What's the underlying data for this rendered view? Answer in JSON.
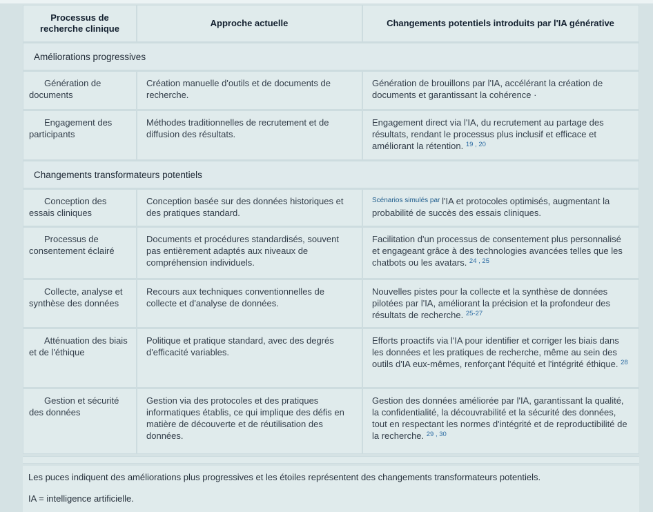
{
  "table": {
    "headers": [
      "Processus de recherche clinique",
      "Approche actuelle",
      "Changements potentiels introduits par l'IA générative"
    ],
    "rows": [
      {
        "type": "section",
        "label": "Améliorations progressives"
      },
      {
        "type": "data",
        "process": "Génération de documents",
        "current": "Création manuelle d'outils et de documents de recherche.",
        "change": [
          {
            "k": "txt",
            "t": "Génération de brouillons par l'IA, accélérant la création de documents et garantissant la cohérence ·"
          }
        ]
      },
      {
        "type": "data",
        "process": "Engagement des participants",
        "current": "Méthodes traditionnelles de recrutement et de diffusion des résultats.",
        "change": [
          {
            "k": "txt",
            "t": "Engagement direct via l'IA, du recrutement au partage des résultats, rendant le processus plus inclusif et efficace et améliorant la rétention. "
          },
          {
            "k": "sup",
            "t": "19 , 20"
          }
        ]
      },
      {
        "type": "section",
        "label": "Changements transformateurs potentiels"
      },
      {
        "type": "data",
        "process": "Conception des essais cliniques",
        "current": "Conception basée sur des données historiques et des pratiques standard.",
        "change": [
          {
            "k": "small",
            "t": "Scénarios simulés par "
          },
          {
            "k": "txt",
            "t": "l'IA et protocoles optimisés, augmentant la probabilité de succès des essais cliniques."
          }
        ]
      },
      {
        "type": "data",
        "process": "Processus de consentement éclairé",
        "current": "Documents et procédures standardisés, souvent pas entièrement adaptés aux niveaux de compréhension individuels.",
        "change": [
          {
            "k": "txt",
            "t": "Facilitation d'un processus de consentement plus personnalisé et engageant grâce à des technologies avancées telles que les chatbots ou les avatars. "
          },
          {
            "k": "sup",
            "t": "24 , 25"
          }
        ]
      },
      {
        "type": "data",
        "process": "Collecte, analyse et synthèse des données",
        "current": "Recours aux techniques conventionnelles de collecte et d'analyse de données.",
        "change": [
          {
            "k": "txt",
            "t": "Nouvelles pistes pour la collecte et la synthèse de données pilotées par l'IA, améliorant la précision et la profondeur des résultats de recherche. "
          },
          {
            "k": "sup",
            "t": "25-27"
          }
        ]
      },
      {
        "type": "data",
        "process": "Atténuation des biais et de l'éthique",
        "current": "Politique et pratique standard, avec des degrés d'efficacité variables.",
        "change": [
          {
            "k": "txt",
            "t": "Efforts proactifs via l'IA pour identifier et corriger les biais dans les données et les pratiques de recherche, même au sein des outils d'IA eux-mêmes, renforçant l'équité et l'intégrité éthique. "
          },
          {
            "k": "sup",
            "t": "28"
          }
        ]
      },
      {
        "type": "data",
        "process": "Gestion et sécurité des données",
        "current": "Gestion via des protocoles et des pratiques informatiques établis, ce qui implique des défis en matière de découverte et de réutilisation des données.",
        "change": [
          {
            "k": "txt",
            "t": "Gestion des données améliorée par l'IA, garantissant la qualité, la confidentialité, la découvrabilité et la sécurité des données, tout en respectant les normes d'intégrité et de reproductibilité de la recherche. "
          },
          {
            "k": "sup",
            "t": "29 , 30"
          }
        ]
      }
    ]
  },
  "footer": {
    "notes": [
      "Les puces indiquent des améliorations plus progressives et les étoiles représentent des changements transformateurs potentiels.",
      "IA = intelligence artificielle."
    ]
  },
  "colors": {
    "page_background": "#d5e2e4",
    "cell_background": "#e0ebec",
    "divider": "#cddcdf",
    "header_text": "#13202f",
    "body_text": "#333e4a",
    "citation_blue": "#2d6ca3"
  }
}
